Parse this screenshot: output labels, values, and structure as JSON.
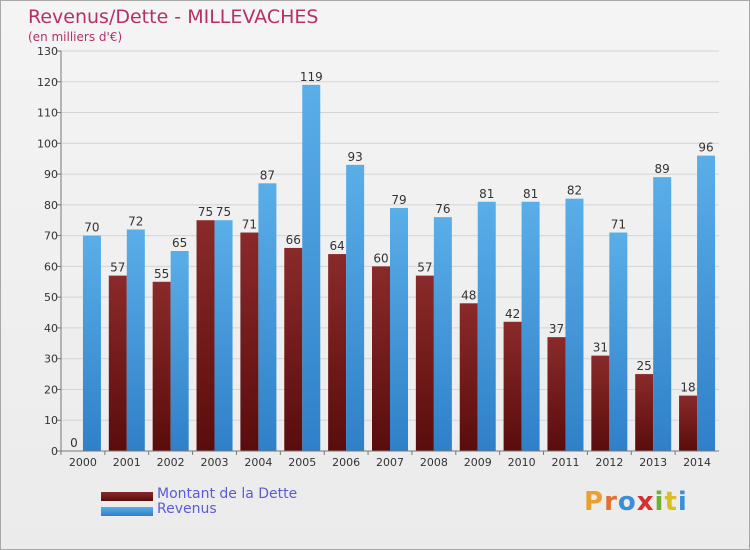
{
  "title": "Revenus/Dette - MILLEVACHES",
  "subtitle": "(en milliers d'€)",
  "logo": {
    "text": "Proxiti",
    "letters": [
      "P",
      "r",
      "o",
      "x",
      "i",
      "t",
      "i"
    ],
    "colors": [
      "#e8a030",
      "#e07030",
      "#3a8fd8",
      "#d83030",
      "#70b030",
      "#d8c020",
      "#3a8fd8"
    ]
  },
  "chart_data": {
    "type": "bar",
    "title": "Revenus/Dette - MILLEVACHES",
    "ylabel": "(en milliers d'€)",
    "xlabel": "",
    "categories": [
      "2000",
      "2001",
      "2002",
      "2003",
      "2004",
      "2005",
      "2006",
      "2007",
      "2008",
      "2009",
      "2010",
      "2011",
      "2012",
      "2013",
      "2014"
    ],
    "series": [
      {
        "name": "Montant de la Dette",
        "color": "#7a1e1e",
        "values": [
          0,
          57,
          55,
          75,
          71,
          66,
          64,
          60,
          57,
          48,
          42,
          37,
          31,
          25,
          18
        ]
      },
      {
        "name": "Revenus",
        "color": "#4a9de0",
        "values": [
          70,
          72,
          65,
          75,
          87,
          119,
          93,
          79,
          76,
          81,
          81,
          82,
          71,
          89,
          96
        ]
      }
    ],
    "ylim": [
      0,
      130
    ],
    "yticks": [
      0,
      10,
      20,
      30,
      40,
      50,
      60,
      70,
      80,
      90,
      100,
      110,
      120,
      130
    ],
    "grid": true,
    "legend": "bottom-left"
  }
}
